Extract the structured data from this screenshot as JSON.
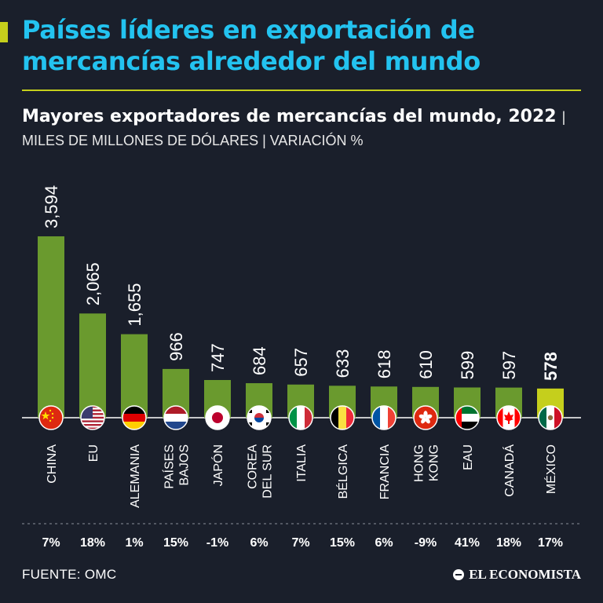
{
  "header": {
    "title": "Países líderes en exportación de mercancías alrededor del mundo",
    "subtitle_bold": "Mayores exportadores de mercancías del mundo, 2022",
    "subtitle_light": "| MILES DE MILLONES DE DÓLARES | VARIACIÓN %"
  },
  "colors": {
    "background": "#1a1f2b",
    "title": "#23c3f0",
    "accent": "#c5cf1c",
    "bar": "#6a9a2e",
    "bar_highlight": "#c5cf1c"
  },
  "chart_data": {
    "type": "bar",
    "categories": [
      "CHINA",
      "EU",
      "ALEMANIA",
      "PAÍSES BAJOS",
      "JAPÓN",
      "COREA DEL SUR",
      "ITALIA",
      "BÉLGICA",
      "FRANCIA",
      "HONG KONG",
      "EAU",
      "CANADÁ",
      "MÉXICO"
    ],
    "category_lines": [
      [
        "CHINA"
      ],
      [
        "EU"
      ],
      [
        "ALEMANIA"
      ],
      [
        "PAÍSES",
        "BAJOS"
      ],
      [
        "JAPÓN"
      ],
      [
        "COREA",
        "DEL SUR"
      ],
      [
        "ITALIA"
      ],
      [
        "BÉLGICA"
      ],
      [
        "FRANCIA"
      ],
      [
        "HONG",
        "KONG"
      ],
      [
        "EAU"
      ],
      [
        "CANADÁ"
      ],
      [
        "MÉXICO"
      ]
    ],
    "values": [
      3594,
      2065,
      1655,
      966,
      747,
      684,
      657,
      633,
      618,
      610,
      599,
      597,
      578
    ],
    "value_labels": [
      "3,594",
      "2,065",
      "1,655",
      "966",
      "747",
      "684",
      "657",
      "633",
      "618",
      "610",
      "599",
      "597",
      "578"
    ],
    "variation_labels": [
      "7%",
      "18%",
      "1%",
      "15%",
      "-1%",
      "6%",
      "7%",
      "15%",
      "6%",
      "-9%",
      "41%",
      "18%",
      "17%"
    ],
    "flags": [
      "china-flag",
      "usa-flag",
      "germany-flag",
      "netherlands-flag",
      "japan-flag",
      "south-korea-flag",
      "italy-flag",
      "belgium-flag",
      "france-flag",
      "hong-kong-flag",
      "uae-flag",
      "canada-flag",
      "mexico-flag"
    ],
    "highlight": "MÉXICO",
    "ylim": [
      0,
      3594
    ],
    "grid": false,
    "legend": "none"
  },
  "footer": {
    "source": "FUENTE: OMC",
    "brand": "EL ECONOMISTA"
  }
}
